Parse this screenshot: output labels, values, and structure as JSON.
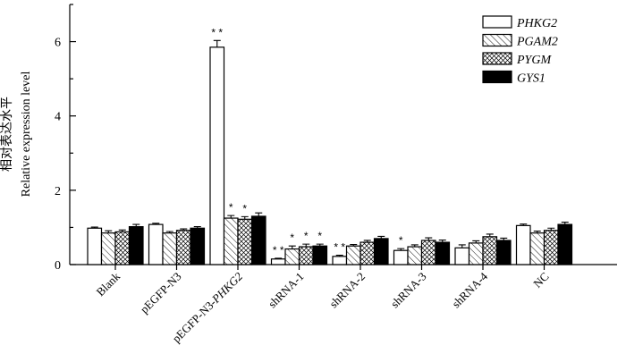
{
  "chart_data": {
    "type": "bar",
    "ylabel_cn": "相对表达水平",
    "ylabel": "Relative expression level",
    "ylim": [
      0,
      7
    ],
    "yticks": [
      0,
      2,
      4,
      6
    ],
    "categories": [
      {
        "parts": [
          {
            "text": "Blank",
            "italic": false
          }
        ]
      },
      {
        "parts": [
          {
            "text": "pEGFP-N3",
            "italic": false
          }
        ]
      },
      {
        "parts": [
          {
            "text": "pEGFP-N3-",
            "italic": false
          },
          {
            "text": "PHKG2",
            "italic": true
          }
        ]
      },
      {
        "parts": [
          {
            "text": "shRNA-1",
            "italic": false
          }
        ]
      },
      {
        "parts": [
          {
            "text": "shRNA-2",
            "italic": false
          }
        ]
      },
      {
        "parts": [
          {
            "text": "shRNA-3",
            "italic": false
          }
        ]
      },
      {
        "parts": [
          {
            "text": "shRNA-4",
            "italic": false
          }
        ]
      },
      {
        "parts": [
          {
            "text": "NC",
            "italic": false
          }
        ]
      }
    ],
    "series": [
      {
        "name": "PHKG2",
        "fill": "white",
        "values": [
          0.98,
          1.08,
          5.85,
          0.15,
          0.22,
          0.38,
          0.45,
          1.05
        ],
        "errors": [
          0.03,
          0.03,
          0.18,
          0.02,
          0.03,
          0.05,
          0.08,
          0.04
        ]
      },
      {
        "name": "PGAM2",
        "fill": "diag",
        "values": [
          0.85,
          0.85,
          1.25,
          0.42,
          0.5,
          0.48,
          0.58,
          0.85
        ],
        "errors": [
          0.06,
          0.04,
          0.07,
          0.08,
          0.04,
          0.05,
          0.06,
          0.05
        ]
      },
      {
        "name": "PYGM",
        "fill": "cross",
        "values": [
          0.88,
          0.92,
          1.22,
          0.48,
          0.6,
          0.65,
          0.75,
          0.92
        ],
        "errors": [
          0.05,
          0.04,
          0.07,
          0.07,
          0.05,
          0.07,
          0.07,
          0.06
        ]
      },
      {
        "name": "GYS1",
        "fill": "black",
        "values": [
          1.02,
          0.98,
          1.3,
          0.5,
          0.7,
          0.6,
          0.65,
          1.08
        ],
        "errors": [
          0.06,
          0.04,
          0.09,
          0.05,
          0.06,
          0.06,
          0.06,
          0.06
        ]
      }
    ],
    "annotations": [
      {
        "category": 2,
        "series": 0,
        "text": "* *"
      },
      {
        "category": 2,
        "series": 1,
        "text": "*"
      },
      {
        "category": 2,
        "series": 2,
        "text": "*"
      },
      {
        "category": 3,
        "series": 0,
        "text": "* *"
      },
      {
        "category": 3,
        "series": 1,
        "text": "*"
      },
      {
        "category": 3,
        "series": 2,
        "text": "*"
      },
      {
        "category": 3,
        "series": 3,
        "text": "*"
      },
      {
        "category": 4,
        "series": 0,
        "text": "* *"
      },
      {
        "category": 5,
        "series": 0,
        "text": "*"
      }
    ],
    "legend": "top-right",
    "grid": false
  }
}
